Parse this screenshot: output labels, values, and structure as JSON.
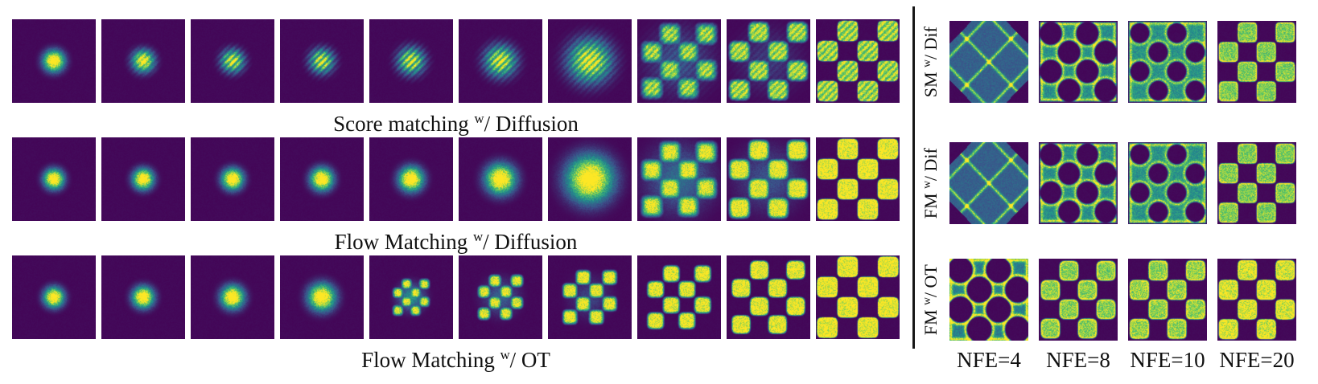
{
  "figure": {
    "colors": {
      "background": "#ffffff",
      "panel_base": "#440154",
      "separator": "#161616",
      "viridis": [
        "#440154",
        "#3b528b",
        "#21918c",
        "#5ec962",
        "#fde725"
      ]
    },
    "left_section": {
      "rows": [
        {
          "caption": {
            "pre": "Score matching ",
            "sup": "w",
            "post": "/ Diffusion"
          },
          "panels": [
            {
              "t": "blob",
              "s": 0.17
            },
            {
              "t": "blob",
              "s": 0.175,
              "st": 0.3
            },
            {
              "t": "blob",
              "s": 0.18,
              "st": 0.5
            },
            {
              "t": "blob",
              "s": 0.19,
              "st": 0.55
            },
            {
              "t": "blob",
              "s": 0.21,
              "st": 0.55
            },
            {
              "t": "blob",
              "s": 0.245,
              "st": 0.5
            },
            {
              "t": "blob",
              "s": 0.34,
              "st": 0.45
            },
            {
              "t": "checker",
              "e": 0.86,
              "b": 0.55,
              "q": 4,
              "st": 0.3,
              "h": [
                0.3,
                0.55
              ]
            },
            {
              "t": "checker",
              "e": 0.92,
              "b": 0.3,
              "q": 4,
              "st": 0.3,
              "h": [
                0.2,
                0.55
              ]
            },
            {
              "t": "checker",
              "e": 0.96,
              "b": 0.09,
              "q": 5,
              "st": 0.35,
              "rim": 0.3
            }
          ]
        },
        {
          "caption": {
            "pre": "Flow Matching ",
            "sup": "w",
            "post": "/ Diffusion"
          },
          "panels": [
            {
              "t": "blob",
              "s": 0.16
            },
            {
              "t": "blob",
              "s": 0.165
            },
            {
              "t": "blob",
              "s": 0.17
            },
            {
              "t": "blob",
              "s": 0.18
            },
            {
              "t": "blob",
              "s": 0.195
            },
            {
              "t": "blob",
              "s": 0.24
            },
            {
              "t": "blob",
              "s": 0.37
            },
            {
              "t": "checker",
              "e": 0.86,
              "b": 0.55,
              "q": 4,
              "h": [
                0.35,
                0.55
              ]
            },
            {
              "t": "checker",
              "e": 0.92,
              "b": 0.3,
              "q": 4,
              "h": [
                0.25,
                0.55
              ]
            },
            {
              "t": "checker",
              "e": 0.96,
              "b": 0.09,
              "q": 5,
              "rim": 0.3
            }
          ]
        },
        {
          "caption": {
            "pre": "Flow Matching ",
            "sup": "w",
            "post": "/ OT"
          },
          "panels": [
            {
              "t": "blob",
              "s": 0.16
            },
            {
              "t": "blob",
              "s": 0.17
            },
            {
              "t": "blob",
              "s": 0.185
            },
            {
              "t": "blob",
              "s": 0.215
            },
            {
              "t": "checker",
              "e": 0.42,
              "b": 0.6,
              "q": 3,
              "h": [
                0.5,
                0.22
              ]
            },
            {
              "t": "checker",
              "e": 0.52,
              "b": 0.5,
              "q": 3,
              "h": [
                0.3,
                0.3
              ]
            },
            {
              "t": "checker",
              "e": 0.63,
              "b": 0.38,
              "q": 4,
              "h": [
                0.2,
                0.35
              ]
            },
            {
              "t": "checker",
              "e": 0.75,
              "b": 0.24,
              "q": 4
            },
            {
              "t": "checker",
              "e": 0.87,
              "b": 0.14,
              "q": 4
            },
            {
              "t": "checker",
              "e": 0.97,
              "b": 0.07,
              "q": 5,
              "rim": 0.3
            }
          ]
        }
      ]
    },
    "right_section": {
      "rows": [
        {
          "label": {
            "pre": "SM ",
            "sup": "w",
            "post": "/ Dif"
          },
          "panels": [
            {
              "t": "diamond"
            },
            {
              "t": "mesh",
              "e": 0.93,
              "r": 0.3,
              "rw": 0.55,
              "f": 0.48
            },
            {
              "t": "mesh",
              "e": 0.94,
              "r": 0.26,
              "rw": 0.5,
              "f": 0.5
            },
            {
              "t": "checker",
              "e": 0.96,
              "b": 0.08,
              "q": 6,
              "g": 0.78,
              "rim": 0.5
            }
          ]
        },
        {
          "label": {
            "pre": "FM ",
            "sup": "w",
            "post": "/ Dif"
          },
          "panels": [
            {
              "t": "diamond"
            },
            {
              "t": "mesh",
              "e": 0.93,
              "r": 0.29,
              "rw": 0.55,
              "f": 0.48
            },
            {
              "t": "mesh",
              "e": 0.94,
              "r": 0.26,
              "rw": 0.5,
              "f": 0.5
            },
            {
              "t": "checker",
              "e": 0.96,
              "b": 0.08,
              "q": 6,
              "g": 0.78,
              "rim": 0.5
            }
          ]
        },
        {
          "label": {
            "pre": "FM ",
            "sup": "w",
            "post": "/ OT"
          },
          "panels": [
            {
              "t": "mesh",
              "e": 0.97,
              "r": 0.335,
              "rw": 0.8,
              "f": 0.42
            },
            {
              "t": "checker",
              "e": 0.94,
              "b": 0.14,
              "q": 4,
              "g": 0.8,
              "rim": 0.7
            },
            {
              "t": "checker",
              "e": 0.95,
              "b": 0.12,
              "q": 5,
              "g": 0.82,
              "rim": 0.6
            },
            {
              "t": "checker",
              "e": 0.96,
              "b": 0.08,
              "q": 5,
              "g": 0.95,
              "rim": 0.4
            }
          ]
        }
      ],
      "nfe_labels": [
        "NFE=4",
        "NFE=8",
        "NFE=10",
        "NFE=20"
      ]
    }
  }
}
